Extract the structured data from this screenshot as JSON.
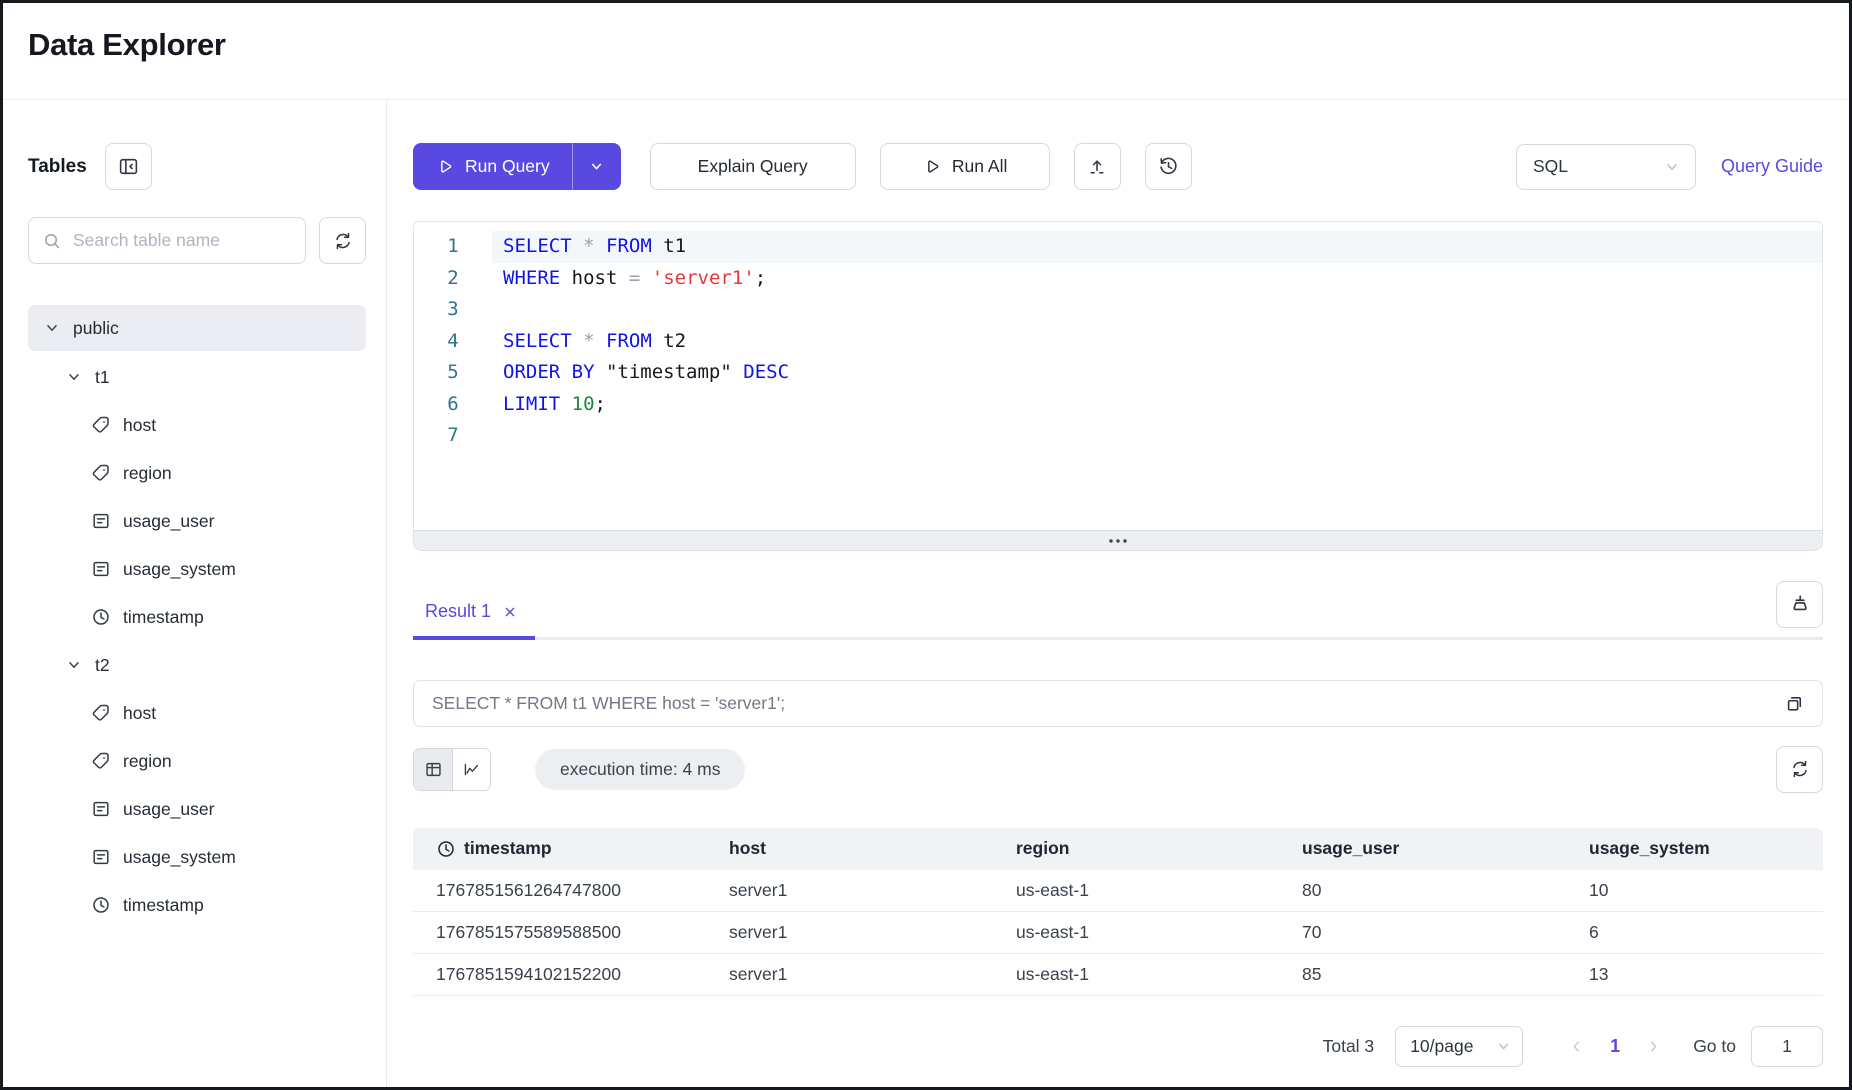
{
  "colors": {
    "accent": "#5849E0",
    "keyword": "#1114E8",
    "string": "#E5393E",
    "number": "#168A3F",
    "operator": "#98A0AD",
    "line_number": "#2F7590",
    "active_line_bg": "#F4F7FA",
    "table_header_bg": "#F1F2F5",
    "badge_bg": "#ECEEF2"
  },
  "header": {
    "title": "Data Explorer"
  },
  "sidebar": {
    "title": "Tables",
    "search": {
      "placeholder": "Search table name"
    },
    "tree": [
      {
        "label": "public",
        "level": 0,
        "kind": "schema",
        "expanded": true
      },
      {
        "label": "t1",
        "level": 1,
        "kind": "table",
        "expanded": true
      },
      {
        "label": "host",
        "level": 2,
        "icon": "tag-icon"
      },
      {
        "label": "region",
        "level": 2,
        "icon": "tag-icon"
      },
      {
        "label": "usage_user",
        "level": 2,
        "icon": "field-icon"
      },
      {
        "label": "usage_system",
        "level": 2,
        "icon": "field-icon"
      },
      {
        "label": "timestamp",
        "level": 2,
        "icon": "clock-icon"
      },
      {
        "label": "t2",
        "level": 1,
        "kind": "table",
        "expanded": true
      },
      {
        "label": "host",
        "level": 2,
        "icon": "tag-icon"
      },
      {
        "label": "region",
        "level": 2,
        "icon": "tag-icon"
      },
      {
        "label": "usage_user",
        "level": 2,
        "icon": "field-icon"
      },
      {
        "label": "usage_system",
        "level": 2,
        "icon": "field-icon"
      },
      {
        "label": "timestamp",
        "level": 2,
        "icon": "clock-icon"
      }
    ]
  },
  "toolbar": {
    "run_query": "Run Query",
    "explain_query": "Explain Query",
    "run_all": "Run All",
    "language_select": "SQL",
    "query_guide": "Query Guide"
  },
  "editor": {
    "lines": [
      {
        "no": "1",
        "active": true,
        "tokens": [
          [
            "kw",
            "SELECT"
          ],
          [
            "pl",
            " "
          ],
          [
            "op",
            "*"
          ],
          [
            "pl",
            " "
          ],
          [
            "kw",
            "FROM"
          ],
          [
            "pl",
            " t1"
          ]
        ]
      },
      {
        "no": "2",
        "tokens": [
          [
            "kw",
            "WHERE"
          ],
          [
            "pl",
            " host "
          ],
          [
            "op",
            "="
          ],
          [
            "pl",
            " "
          ],
          [
            "str",
            "'server1'"
          ],
          [
            "pl",
            ";"
          ]
        ]
      },
      {
        "no": "3",
        "tokens": []
      },
      {
        "no": "4",
        "tokens": [
          [
            "kw",
            "SELECT"
          ],
          [
            "pl",
            " "
          ],
          [
            "op",
            "*"
          ],
          [
            "pl",
            " "
          ],
          [
            "kw",
            "FROM"
          ],
          [
            "pl",
            " t2"
          ]
        ]
      },
      {
        "no": "5",
        "tokens": [
          [
            "kw",
            "ORDER"
          ],
          [
            "pl",
            " "
          ],
          [
            "kw",
            "BY"
          ],
          [
            "pl",
            " \"timestamp\" "
          ],
          [
            "kw",
            "DESC"
          ]
        ]
      },
      {
        "no": "6",
        "tokens": [
          [
            "kw",
            "LIMIT"
          ],
          [
            "pl",
            " "
          ],
          [
            "num",
            "10"
          ],
          [
            "pl",
            ";"
          ]
        ]
      },
      {
        "no": "7",
        "tokens": []
      }
    ]
  },
  "results": {
    "tab": {
      "label": "Result 1"
    },
    "query_echo": "SELECT * FROM t1 WHERE host = 'server1';",
    "execution_time": "execution time: 4 ms",
    "table": {
      "columns": [
        {
          "label": "timestamp",
          "icon": "clock-icon"
        },
        {
          "label": "host"
        },
        {
          "label": "region"
        },
        {
          "label": "usage_user"
        },
        {
          "label": "usage_system"
        }
      ],
      "rows": [
        [
          "1767851561264747800",
          "server1",
          "us-east-1",
          "80",
          "10"
        ],
        [
          "1767851575589588500",
          "server1",
          "us-east-1",
          "70",
          "6"
        ],
        [
          "1767851594102152200",
          "server1",
          "us-east-1",
          "85",
          "13"
        ]
      ]
    },
    "pagination": {
      "total": "Total 3",
      "page_size": "10/page",
      "current_page": "1",
      "goto_label": "Go to",
      "goto_value": "1"
    }
  }
}
